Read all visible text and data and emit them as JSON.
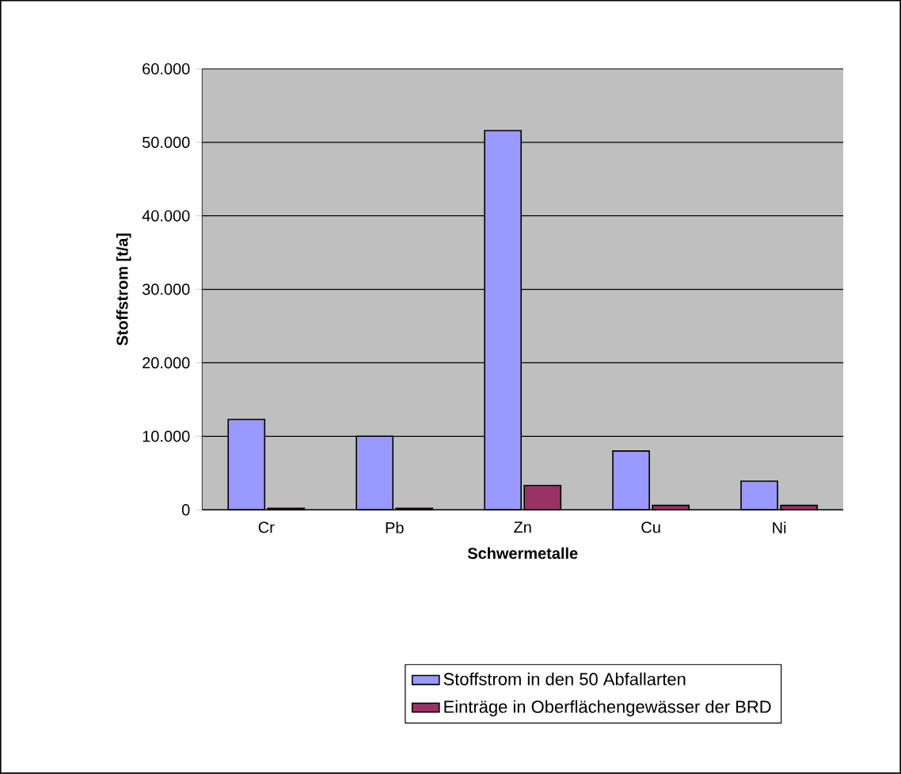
{
  "chart_data": {
    "type": "bar",
    "xlabel": "Schwermetalle",
    "ylabel": "Stoffstrom [t/a]",
    "categories": [
      "Cr",
      "Pb",
      "Zn",
      "Cu",
      "Ni"
    ],
    "series": [
      {
        "name": "Stoffstrom in den 50 Abfallarten",
        "color": "#9999ff",
        "values": [
          12300,
          10000,
          51600,
          8000,
          3900
        ]
      },
      {
        "name": "Einträge in Oberflächengewässer der BRD",
        "color": "#993366",
        "values": [
          200,
          200,
          3300,
          600,
          600
        ]
      }
    ],
    "ylim": [
      0,
      60000
    ],
    "yticks": [
      {
        "value": 0,
        "label": "0"
      },
      {
        "value": 10000,
        "label": "10.000"
      },
      {
        "value": 20000,
        "label": "20.000"
      },
      {
        "value": 30000,
        "label": "30.000"
      },
      {
        "value": 40000,
        "label": "40.000"
      },
      {
        "value": 50000,
        "label": "50.000"
      },
      {
        "value": 60000,
        "label": "60.000"
      }
    ],
    "grid": "y",
    "legend": "bottom"
  }
}
